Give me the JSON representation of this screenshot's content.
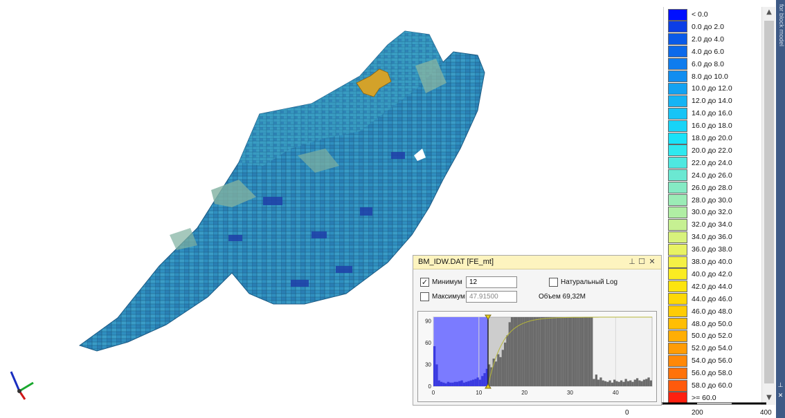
{
  "legend": {
    "items": [
      {
        "label": "< 0.0",
        "color": "#0010ff"
      },
      {
        "label": "0.0 до 2.0",
        "color": "#0b3ee6"
      },
      {
        "label": "2.0 до 4.0",
        "color": "#0a5ae8"
      },
      {
        "label": "4.0 до 6.0",
        "color": "#0c6aea"
      },
      {
        "label": "6.0 до 8.0",
        "color": "#0e7cee"
      },
      {
        "label": "8.0 до 10.0",
        "color": "#108df0"
      },
      {
        "label": "10.0 до 12.0",
        "color": "#13a2f2"
      },
      {
        "label": "12.0 до 14.0",
        "color": "#15b4f4"
      },
      {
        "label": "14.0 до 16.0",
        "color": "#17c4f6"
      },
      {
        "label": "16.0 до 18.0",
        "color": "#18d4f7"
      },
      {
        "label": "18.0 до 20.0",
        "color": "#1ae2f8"
      },
      {
        "label": "20.0 до 22.0",
        "color": "#2ee8ef"
      },
      {
        "label": "22.0 до 24.0",
        "color": "#4ee8e0"
      },
      {
        "label": "24.0 до 26.0",
        "color": "#6be8d2"
      },
      {
        "label": "26.0 до 28.0",
        "color": "#85eac4"
      },
      {
        "label": "28.0 до 30.0",
        "color": "#9becb6"
      },
      {
        "label": "30.0 до 32.0",
        "color": "#b0eea4"
      },
      {
        "label": "32.0 до 34.0",
        "color": "#c6f092"
      },
      {
        "label": "34.0 до 36.0",
        "color": "#d8f27c"
      },
      {
        "label": "36.0 до 38.0",
        "color": "#e8f264"
      },
      {
        "label": "38.0 до 40.0",
        "color": "#f4f046"
      },
      {
        "label": "40.0 до 42.0",
        "color": "#fbec22"
      },
      {
        "label": "42.0 до 44.0",
        "color": "#fde40e"
      },
      {
        "label": "44.0 до 46.0",
        "color": "#fed806"
      },
      {
        "label": "46.0 до 48.0",
        "color": "#ffcc04"
      },
      {
        "label": "48.0 до 50.0",
        "color": "#ffbe04"
      },
      {
        "label": "50.0 до 52.0",
        "color": "#ffae04"
      },
      {
        "label": "52.0 до 54.0",
        "color": "#ff9c06"
      },
      {
        "label": "54.0 до 56.0",
        "color": "#ff8808"
      },
      {
        "label": "56.0 до 58.0",
        "color": "#ff720a"
      },
      {
        "label": "58.0 до 60.0",
        "color": "#ff5a0c"
      },
      {
        "label": ">= 60.0",
        "color": "#ff2010"
      }
    ]
  },
  "dock": {
    "title": "for block model"
  },
  "scalebar": {
    "ticks": [
      "0",
      "200",
      "400"
    ]
  },
  "panel": {
    "title": "BM_IDW.DAT [FE_mt]",
    "min_label": "Минимум",
    "min_checked": true,
    "min_value": "12",
    "max_label": "Максимум",
    "max_checked": false,
    "max_value": "47.91500",
    "natural_log_label": "Натуральный Log",
    "natural_log_checked": false,
    "volume_text": "Объем 69,32M",
    "histogram": {
      "x_ticks": [
        "0",
        "10",
        "20",
        "30",
        "40"
      ],
      "y_ticks": [
        "90",
        "60",
        "30",
        "0"
      ],
      "x_range": [
        0,
        48
      ],
      "y_range": [
        0,
        95
      ],
      "bin_width": 0.5,
      "min_cut": 12,
      "selected_color": "#3a3ae0",
      "selected_bg": "#7b7bff",
      "mid_bg": "#6b6b6b",
      "counts": [
        55,
        30,
        8,
        6,
        5,
        4,
        6,
        5,
        5,
        6,
        6,
        7,
        8,
        5,
        6,
        7,
        8,
        9,
        10,
        12,
        9,
        14,
        18,
        24,
        30,
        26,
        38,
        34,
        44,
        40,
        50,
        60,
        70,
        88,
        95,
        95,
        95,
        95,
        95,
        95,
        95,
        95,
        95,
        95,
        95,
        95,
        95,
        95,
        95,
        95,
        95,
        95,
        95,
        95,
        95,
        95,
        95,
        95,
        95,
        95,
        95,
        95,
        95,
        95,
        95,
        95,
        95,
        95,
        95,
        95,
        10,
        16,
        9,
        12,
        8,
        7,
        6,
        8,
        5,
        9,
        7,
        6,
        8,
        6,
        10,
        7,
        8,
        6,
        9,
        11,
        8,
        7,
        9,
        10,
        12,
        8,
        16,
        12,
        9,
        13,
        17,
        10,
        28,
        16,
        40,
        62,
        34,
        22,
        14,
        12,
        10,
        15,
        30,
        36,
        24,
        18,
        14,
        12,
        8,
        6,
        5,
        4,
        3,
        2,
        2,
        2,
        2,
        3,
        8,
        3,
        2,
        1
      ],
      "cum_color": "#b7b738"
    }
  }
}
